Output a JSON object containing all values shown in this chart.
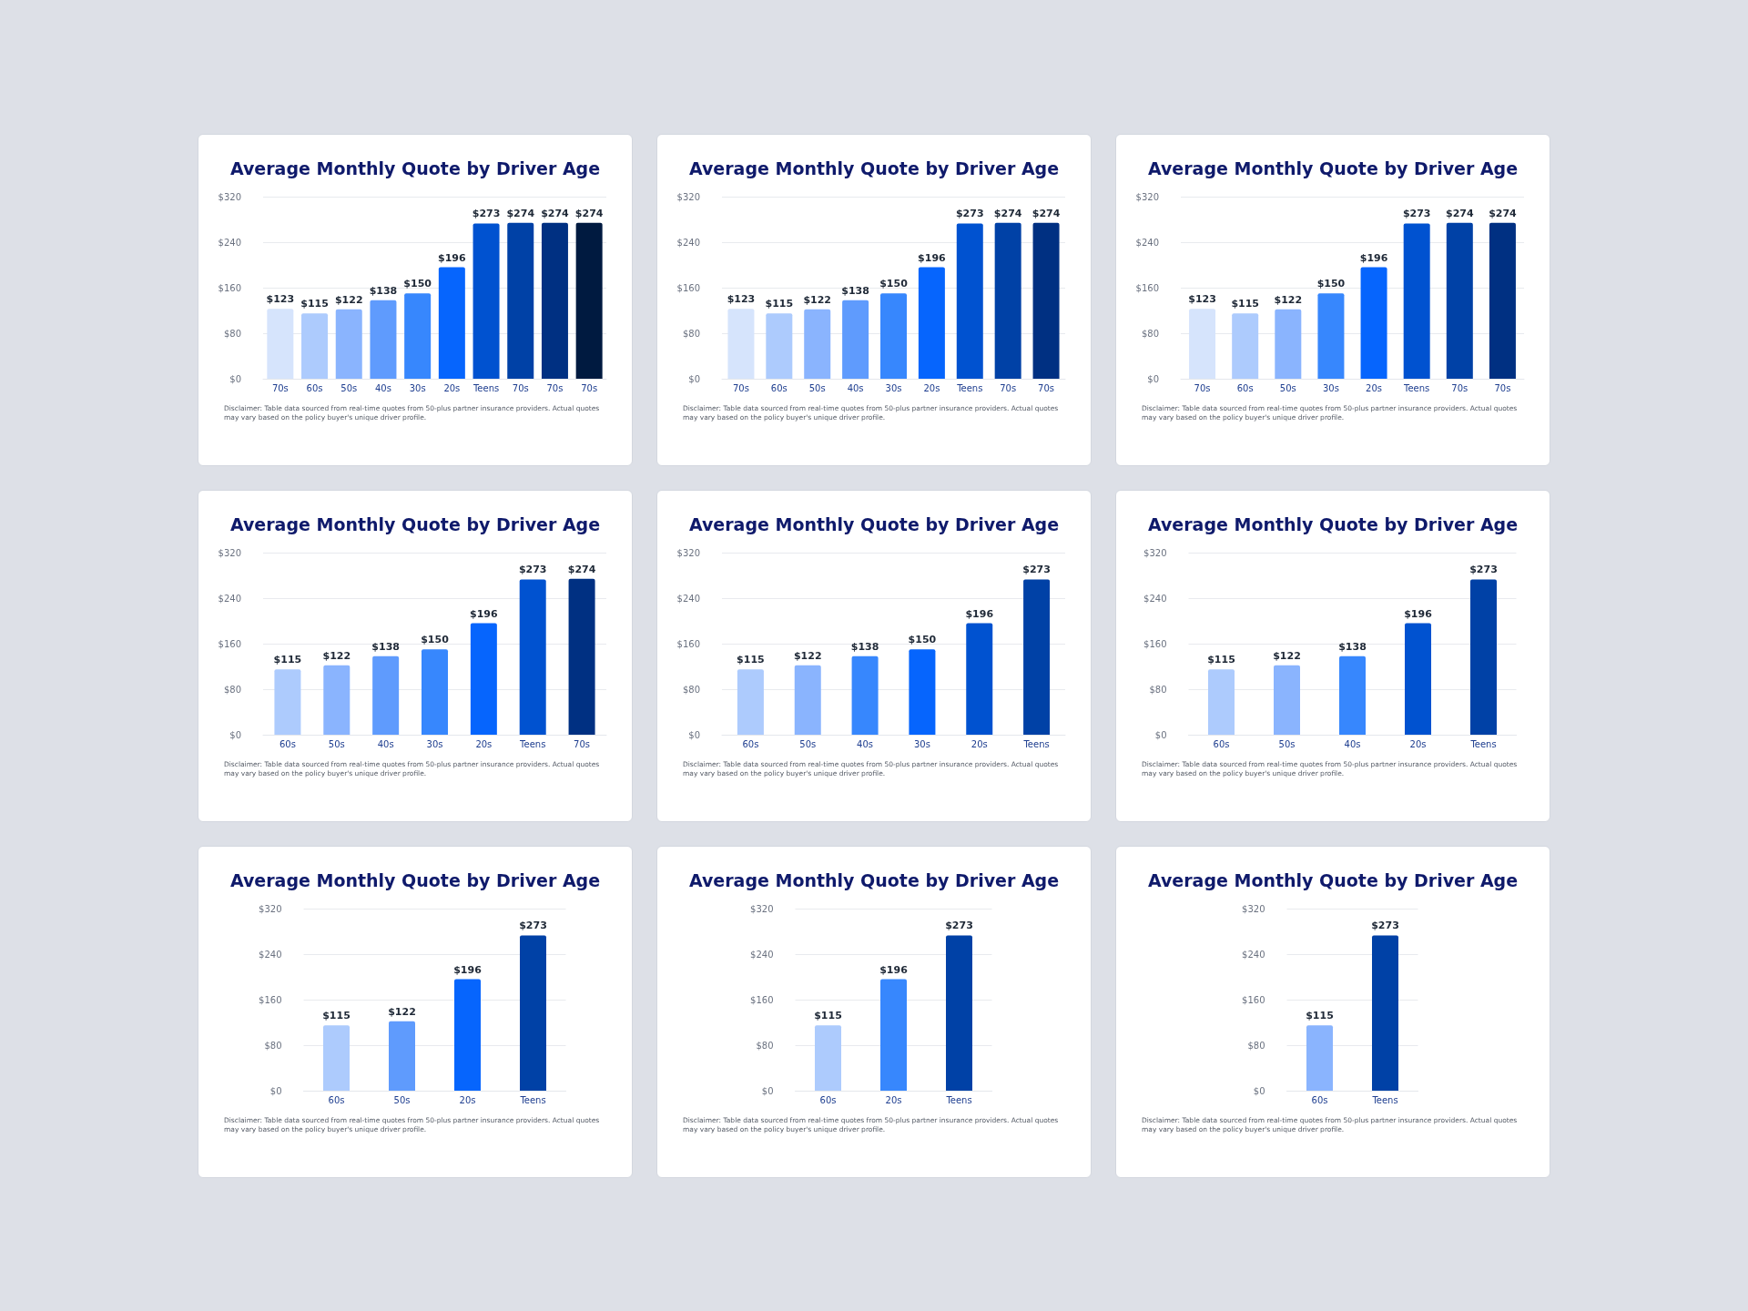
{
  "chart_data": [
    {
      "type": "bar",
      "title": "Average Monthly Quote by Driver Age",
      "categories": [
        "70s",
        "60s",
        "50s",
        "40s",
        "30s",
        "20s",
        "Teens",
        "70s",
        "70s",
        "70s"
      ],
      "values": [
        123,
        115,
        122,
        138,
        150,
        196,
        273,
        274,
        274,
        274
      ],
      "colors": [
        "#d6e4fc",
        "#adcbfd",
        "#8ab4fe",
        "#5f9bfd",
        "#3787fd",
        "#0665fd",
        "#0052d0",
        "#0041a6",
        "#003082",
        "#001a40"
      ],
      "value_labels": [
        "$123",
        "$115",
        "$122",
        "$138",
        "$150",
        "$196",
        "$273",
        "$274",
        "$274",
        "$274"
      ],
      "ylim": [
        0,
        320
      ],
      "yticks": [
        {
          "value": 0,
          "label": "$0"
        },
        {
          "value": 80,
          "label": "$80"
        },
        {
          "value": 160,
          "label": "$160"
        },
        {
          "value": 240,
          "label": "$240"
        },
        {
          "value": 320,
          "label": "$320"
        }
      ],
      "grid": "y",
      "annotations": [
        "Disclaimer: Table data sourced from real-time quotes from 50-plus partner insurance providers. Actual quotes may vary based on the policy buyer's unique driver profile."
      ]
    },
    {
      "type": "bar",
      "title": "Average Monthly Quote by Driver Age",
      "categories": [
        "70s",
        "60s",
        "50s",
        "40s",
        "30s",
        "20s",
        "Teens",
        "70s",
        "70s"
      ],
      "values": [
        123,
        115,
        122,
        138,
        150,
        196,
        273,
        274,
        274
      ],
      "colors": [
        "#d6e4fc",
        "#adcbfd",
        "#8ab4fe",
        "#5f9bfd",
        "#3787fd",
        "#0665fd",
        "#0052d0",
        "#0041a6",
        "#003082"
      ],
      "value_labels": [
        "$123",
        "$115",
        "$122",
        "$138",
        "$150",
        "$196",
        "$273",
        "$274",
        "$274"
      ],
      "ylim": [
        0,
        320
      ],
      "yticks": [
        {
          "value": 0,
          "label": "$0"
        },
        {
          "value": 80,
          "label": "$80"
        },
        {
          "value": 160,
          "label": "$160"
        },
        {
          "value": 240,
          "label": "$240"
        },
        {
          "value": 320,
          "label": "$320"
        }
      ],
      "grid": "y",
      "annotations": [
        "Disclaimer: Table data sourced from real-time quotes from 50-plus partner insurance providers. Actual quotes may vary based on the policy buyer's unique driver profile."
      ]
    },
    {
      "type": "bar",
      "title": "Average Monthly Quote by Driver Age",
      "categories": [
        "70s",
        "60s",
        "50s",
        "30s",
        "20s",
        "Teens",
        "70s",
        "70s"
      ],
      "values": [
        123,
        115,
        122,
        150,
        196,
        273,
        274,
        274
      ],
      "colors": [
        "#d6e4fc",
        "#adcbfd",
        "#8ab4fe",
        "#3787fd",
        "#0665fd",
        "#0052d0",
        "#0041a6",
        "#003082"
      ],
      "value_labels": [
        "$123",
        "$115",
        "$122",
        "$150",
        "$196",
        "$273",
        "$274",
        "$274"
      ],
      "ylim": [
        0,
        320
      ],
      "yticks": [
        {
          "value": 0,
          "label": "$0"
        },
        {
          "value": 80,
          "label": "$80"
        },
        {
          "value": 160,
          "label": "$160"
        },
        {
          "value": 240,
          "label": "$240"
        },
        {
          "value": 320,
          "label": "$320"
        }
      ],
      "grid": "y",
      "annotations": [
        "Disclaimer: Table data sourced from real-time quotes from 50-plus partner insurance providers. Actual quotes may vary based on the policy buyer's unique driver profile."
      ]
    },
    {
      "type": "bar",
      "title": "Average Monthly Quote by Driver Age",
      "categories": [
        "60s",
        "50s",
        "40s",
        "30s",
        "20s",
        "Teens",
        "70s"
      ],
      "values": [
        115,
        122,
        138,
        150,
        196,
        273,
        274
      ],
      "colors": [
        "#adcbfd",
        "#8ab4fe",
        "#5f9bfd",
        "#3787fd",
        "#0665fd",
        "#0052d0",
        "#003082"
      ],
      "value_labels": [
        "$115",
        "$122",
        "$138",
        "$150",
        "$196",
        "$273",
        "$274"
      ],
      "ylim": [
        0,
        320
      ],
      "yticks": [
        {
          "value": 0,
          "label": "$0"
        },
        {
          "value": 80,
          "label": "$80"
        },
        {
          "value": 160,
          "label": "$160"
        },
        {
          "value": 240,
          "label": "$240"
        },
        {
          "value": 320,
          "label": "$320"
        }
      ],
      "grid": "y",
      "annotations": [
        "Disclaimer: Table data sourced from real-time quotes from 50-plus partner insurance providers. Actual quotes may vary based on the policy buyer's unique driver profile."
      ]
    },
    {
      "type": "bar",
      "title": "Average Monthly Quote by Driver Age",
      "categories": [
        "60s",
        "50s",
        "40s",
        "30s",
        "20s",
        "Teens"
      ],
      "values": [
        115,
        122,
        138,
        150,
        196,
        273
      ],
      "colors": [
        "#adcbfd",
        "#8ab4fe",
        "#3787fd",
        "#0665fd",
        "#0052d0",
        "#0041a6"
      ],
      "value_labels": [
        "$115",
        "$122",
        "$138",
        "$150",
        "$196",
        "$273"
      ],
      "ylim": [
        0,
        320
      ],
      "yticks": [
        {
          "value": 0,
          "label": "$0"
        },
        {
          "value": 80,
          "label": "$80"
        },
        {
          "value": 160,
          "label": "$160"
        },
        {
          "value": 240,
          "label": "$240"
        },
        {
          "value": 320,
          "label": "$320"
        }
      ],
      "grid": "y",
      "annotations": [
        "Disclaimer: Table data sourced from real-time quotes from 50-plus partner insurance providers. Actual quotes may vary based on the policy buyer's unique driver profile."
      ]
    },
    {
      "type": "bar",
      "title": "Average Monthly Quote by Driver Age",
      "categories": [
        "60s",
        "50s",
        "40s",
        "20s",
        "Teens"
      ],
      "values": [
        115,
        122,
        138,
        196,
        273
      ],
      "colors": [
        "#adcbfd",
        "#8ab4fe",
        "#3787fd",
        "#0052d0",
        "#0041a6"
      ],
      "value_labels": [
        "$115",
        "$122",
        "$138",
        "$196",
        "$273"
      ],
      "ylim": [
        0,
        320
      ],
      "yticks": [
        {
          "value": 0,
          "label": "$0"
        },
        {
          "value": 80,
          "label": "$80"
        },
        {
          "value": 160,
          "label": "$160"
        },
        {
          "value": 240,
          "label": "$240"
        },
        {
          "value": 320,
          "label": "$320"
        }
      ],
      "grid": "y",
      "annotations": [
        "Disclaimer: Table data sourced from real-time quotes from 50-plus partner insurance providers. Actual quotes may vary based on the policy buyer's unique driver profile."
      ]
    },
    {
      "type": "bar",
      "title": "Average Monthly Quote by Driver Age",
      "categories": [
        "60s",
        "50s",
        "20s",
        "Teens"
      ],
      "values": [
        115,
        122,
        196,
        273
      ],
      "colors": [
        "#adcbfd",
        "#5f9bfd",
        "#0665fd",
        "#0041a6"
      ],
      "value_labels": [
        "$115",
        "$122",
        "$196",
        "$273"
      ],
      "ylim": [
        0,
        320
      ],
      "yticks": [
        {
          "value": 0,
          "label": "$0"
        },
        {
          "value": 80,
          "label": "$80"
        },
        {
          "value": 160,
          "label": "$160"
        },
        {
          "value": 240,
          "label": "$240"
        },
        {
          "value": 320,
          "label": "$320"
        }
      ],
      "grid": "y",
      "annotations": [
        "Disclaimer: Table data sourced from real-time quotes from 50-plus partner insurance providers. Actual quotes may vary based on the policy buyer's unique driver profile."
      ]
    },
    {
      "type": "bar",
      "title": "Average Monthly Quote by Driver Age",
      "categories": [
        "60s",
        "20s",
        "Teens"
      ],
      "values": [
        115,
        196,
        273
      ],
      "colors": [
        "#adcbfd",
        "#3787fd",
        "#0041a6"
      ],
      "value_labels": [
        "$115",
        "$196",
        "$273"
      ],
      "ylim": [
        0,
        320
      ],
      "yticks": [
        {
          "value": 0,
          "label": "$0"
        },
        {
          "value": 80,
          "label": "$80"
        },
        {
          "value": 160,
          "label": "$160"
        },
        {
          "value": 240,
          "label": "$240"
        },
        {
          "value": 320,
          "label": "$320"
        }
      ],
      "grid": "y",
      "annotations": [
        "Disclaimer: Table data sourced from real-time quotes from 50-plus partner insurance providers. Actual quotes may vary based on the policy buyer's unique driver profile."
      ]
    },
    {
      "type": "bar",
      "title": "Average Monthly Quote by Driver Age",
      "categories": [
        "60s",
        "Teens"
      ],
      "values": [
        115,
        273
      ],
      "colors": [
        "#8ab4fe",
        "#0041a6"
      ],
      "value_labels": [
        "$115",
        "$273"
      ],
      "ylim": [
        0,
        320
      ],
      "yticks": [
        {
          "value": 0,
          "label": "$0"
        },
        {
          "value": 80,
          "label": "$80"
        },
        {
          "value": 160,
          "label": "$160"
        },
        {
          "value": 240,
          "label": "$240"
        },
        {
          "value": 320,
          "label": "$320"
        }
      ],
      "grid": "y",
      "annotations": [
        "Disclaimer: Table data sourced from real-time quotes from 50-plus partner insurance providers. Actual quotes may vary based on the policy buyer's unique driver profile."
      ]
    }
  ]
}
